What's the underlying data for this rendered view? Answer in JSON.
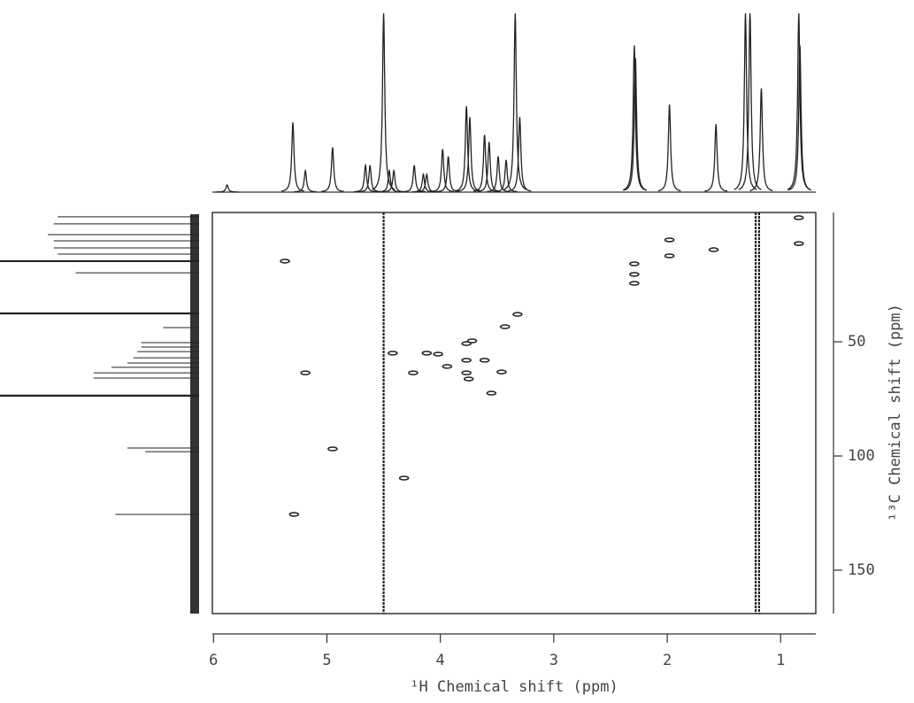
{
  "chart_data": {
    "type": "nmr2d",
    "x_label": "¹H Chemical shift (ppm)",
    "y_label": "¹³C Chemical shift (ppm)",
    "xlim": [
      6.01,
      0.69
    ],
    "xticks": [
      6,
      5,
      4,
      3,
      2,
      1
    ],
    "ylim": [
      -6.6,
      169
    ],
    "yticks": [
      50,
      100,
      150
    ],
    "color": "#222222",
    "x": [
      5.37,
      5.19,
      4.95,
      5.29,
      4.32,
      4.42,
      4.24,
      4.12,
      4.02,
      3.94,
      3.77,
      3.72,
      3.77,
      3.61,
      3.77,
      3.75,
      3.46,
      3.55,
      3.43,
      3.32,
      2.29,
      2.29,
      2.29,
      1.98,
      1.98,
      1.59,
      0.84,
      0.84
    ],
    "y": [
      14.7,
      63.6,
      96.9,
      125.6,
      109.7,
      55.0,
      63.6,
      55.0,
      55.4,
      60.8,
      50.8,
      49.6,
      58.1,
      58.1,
      63.6,
      66.3,
      63.2,
      72.5,
      43.4,
      38.0,
      15.9,
      20.5,
      24.4,
      5.4,
      12.4,
      9.7,
      7.0,
      -4.3
    ],
    "noise_ridges": [
      4.5,
      1.22,
      1.19
    ],
    "h_projection": {
      "x": [
        5.88,
        5.3,
        5.19,
        4.95,
        4.66,
        4.62,
        4.5,
        4.45,
        4.41,
        4.23,
        4.15,
        4.12,
        3.98,
        3.93,
        3.77,
        3.74,
        3.61,
        3.57,
        3.49,
        3.42,
        3.34,
        3.3,
        2.29,
        2.28,
        1.98,
        1.57,
        1.31,
        1.27,
        1.17,
        0.84,
        0.83
      ],
      "values": [
        4,
        39,
        12,
        25,
        15,
        15,
        100,
        12,
        12,
        15,
        10,
        10,
        24,
        20,
        48,
        42,
        32,
        28,
        20,
        18,
        100,
        42,
        82,
        75,
        49,
        38,
        100,
        100,
        58,
        100,
        82
      ]
    },
    "c_projection": {
      "y": [
        -4.7,
        -1.6,
        3.1,
        5.8,
        8.9,
        11.6,
        14.7,
        19.8,
        37.6,
        43.8,
        50.4,
        52.3,
        54.3,
        57.0,
        59.3,
        61.2,
        63.6,
        65.9,
        73.6,
        96.5,
        98.1,
        125.6
      ],
      "values": [
        71,
        73,
        76,
        73,
        73,
        71,
        100,
        62,
        100,
        18,
        29,
        29,
        31,
        33,
        36,
        44,
        53,
        53,
        100,
        36,
        27,
        42
      ]
    }
  }
}
